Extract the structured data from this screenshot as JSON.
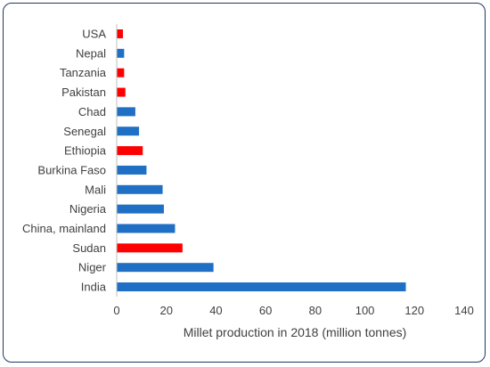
{
  "chart_data": {
    "type": "bar",
    "orientation": "horizontal",
    "title": "",
    "xlabel": "Millet production in 2018 (million tonnes)",
    "ylabel": "",
    "xlim": [
      0,
      140
    ],
    "xticks": [
      0,
      20,
      40,
      60,
      80,
      100,
      120,
      140
    ],
    "grid": false,
    "legend": "none",
    "categories": [
      "USA",
      "Nepal",
      "Tanzania",
      "Pakistan",
      "Chad",
      "Senegal",
      "Ethiopia",
      "Burkina Faso",
      "Mali",
      "Nigeria",
      "China, mainland",
      "Sudan",
      "Niger",
      "India"
    ],
    "values": [
      2.5,
      3,
      3,
      3.5,
      7.5,
      9,
      10.5,
      12,
      18.5,
      19,
      23.5,
      26.5,
      39,
      116.5
    ],
    "colors": [
      "#ff0000",
      "#1f6fc5",
      "#ff0000",
      "#ff0000",
      "#1f6fc5",
      "#1f6fc5",
      "#ff0000",
      "#1f6fc5",
      "#1f6fc5",
      "#1f6fc5",
      "#1f6fc5",
      "#ff0000",
      "#1f6fc5",
      "#1f6fc5"
    ]
  }
}
